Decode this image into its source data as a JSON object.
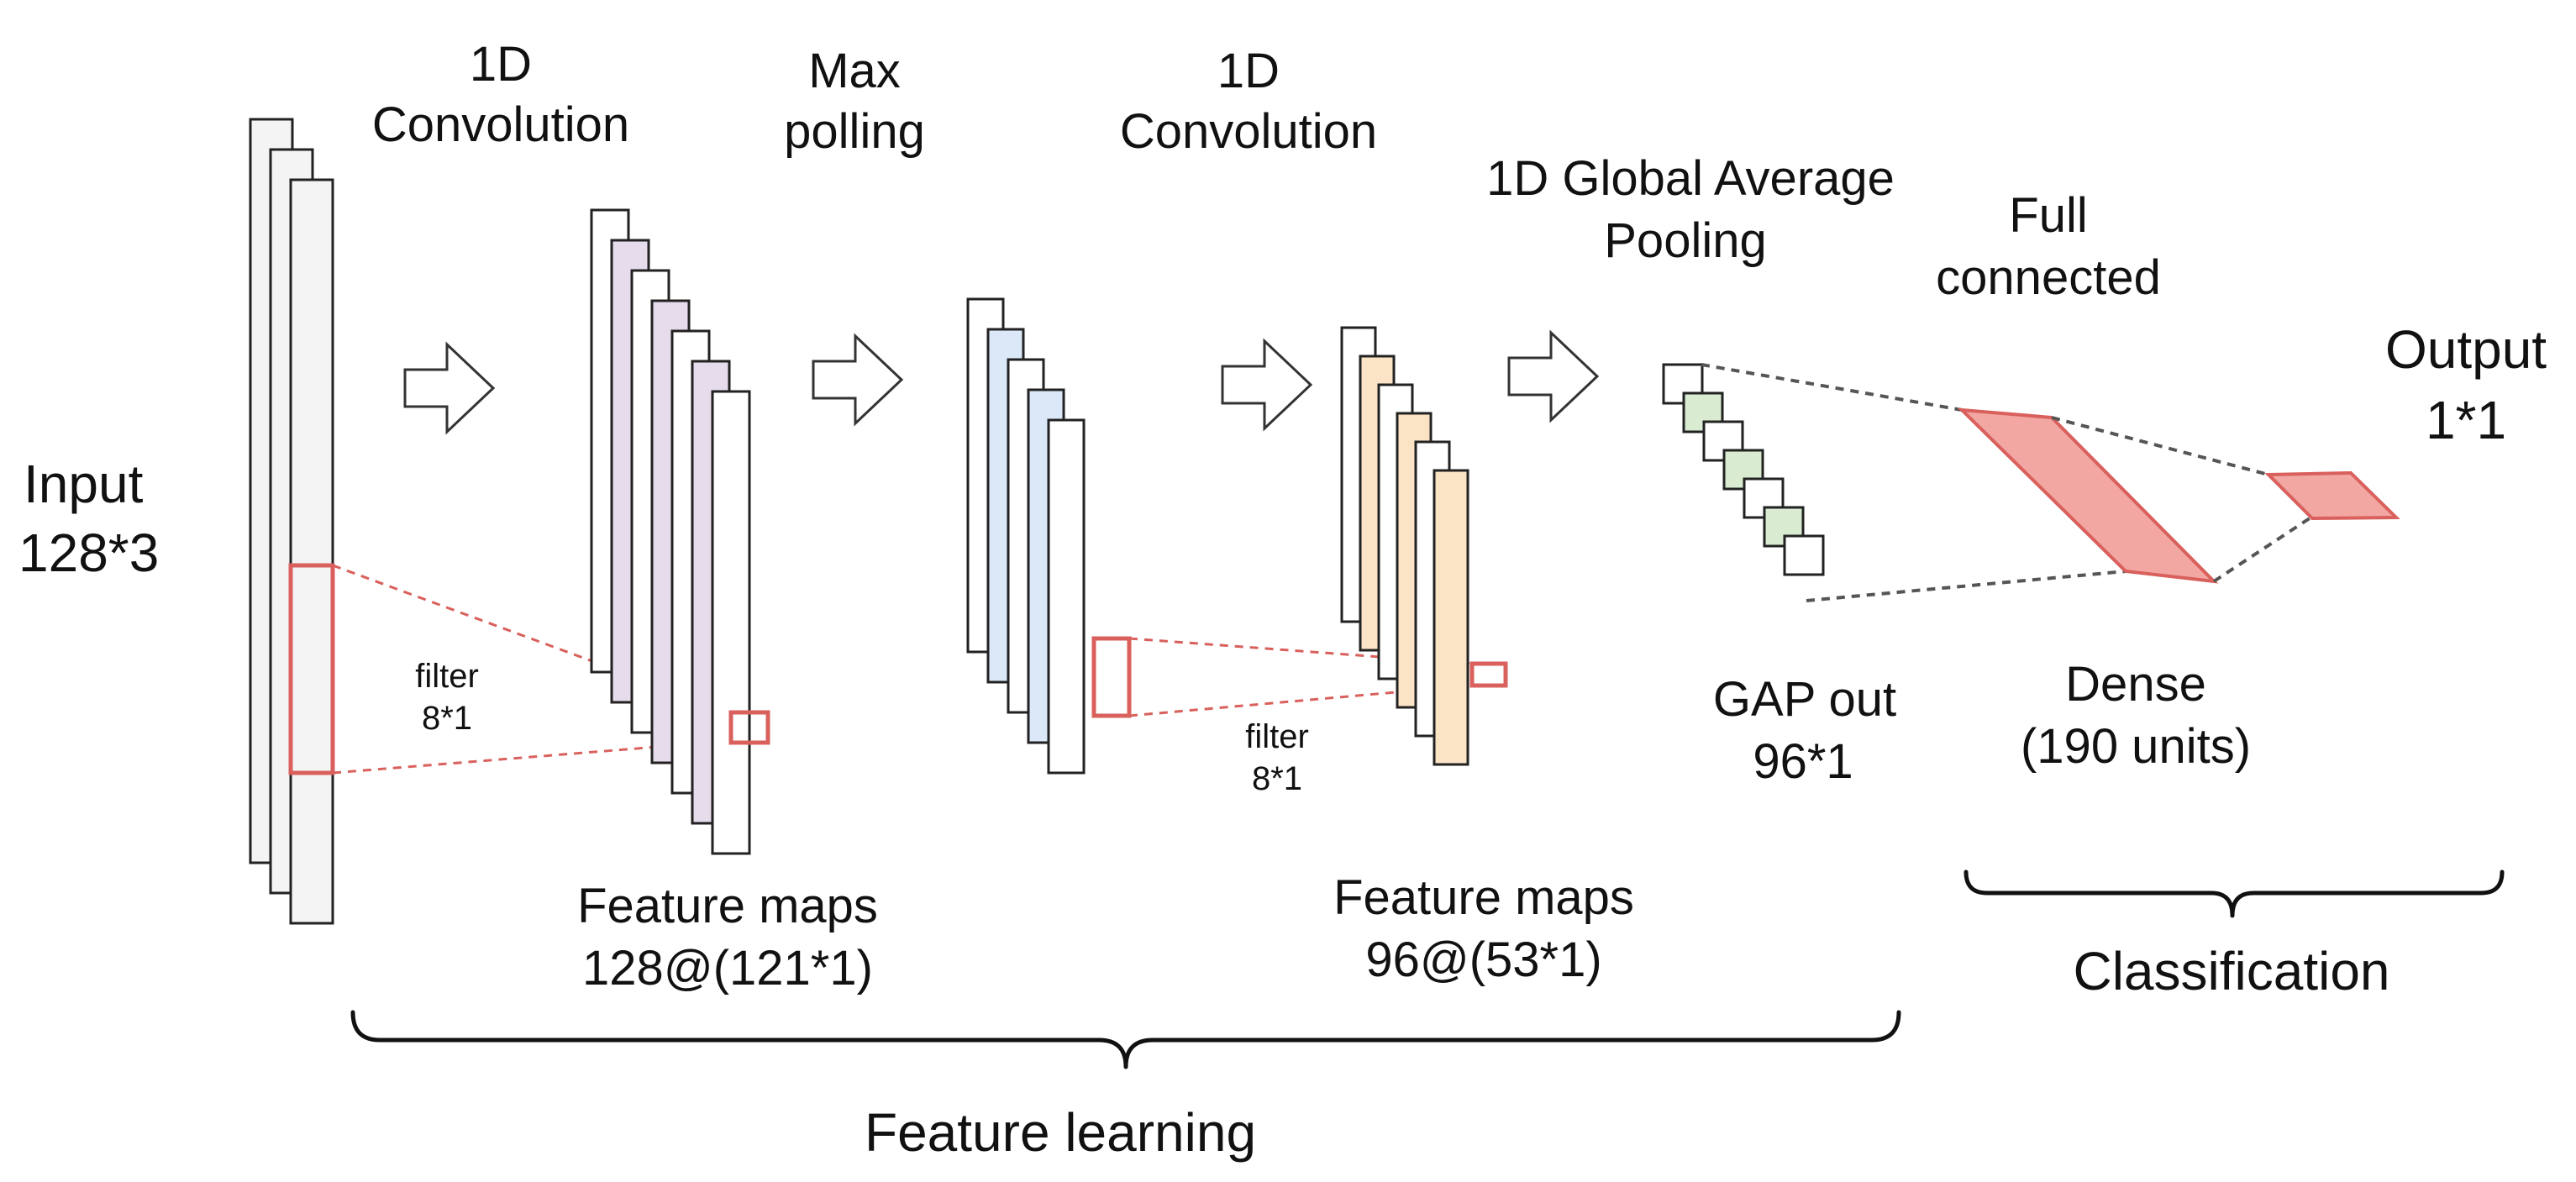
{
  "labels": {
    "input": [
      "Input",
      "128*3"
    ],
    "conv1": [
      "1D",
      "Convolution"
    ],
    "maxpool": [
      "Max",
      "polling"
    ],
    "conv2": [
      "1D",
      "Convolution"
    ],
    "gap": [
      "1D Global Average",
      "Pooling"
    ],
    "fc": [
      "Full",
      "connected"
    ],
    "output": [
      "Output",
      "1*1"
    ],
    "filter1": [
      "filter",
      "8*1"
    ],
    "filter2": [
      "filter",
      "8*1"
    ],
    "fmaps1": [
      "Feature maps",
      "128@(121*1)"
    ],
    "fmaps2": [
      "Feature maps",
      "96@(53*1)"
    ],
    "gap_out": [
      "GAP out",
      "96*1"
    ],
    "dense": [
      "Dense",
      "(190 units)"
    ],
    "feature_learning": "Feature learning",
    "classification": "Classification"
  },
  "colors": {
    "input_layer": "#f4f4f4",
    "conv1_maps": "#e6dcec",
    "pool_maps": "#dbe8f8",
    "conv2_maps": "#fbe4c6",
    "gap_cells": "#d9ecd2",
    "dense_fill": "#f2a7a3",
    "filter_highlight": "#d9605c"
  }
}
